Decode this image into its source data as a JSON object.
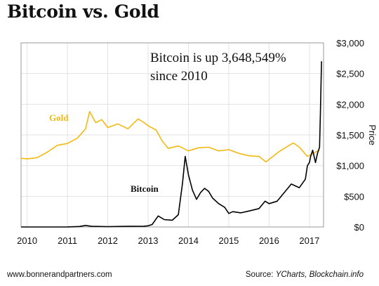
{
  "header": {
    "title": "Bitcoin vs. Gold"
  },
  "footer": {
    "website": "www.bonnerandpartners.com",
    "source_prefix": "Source: ",
    "source_names": "YCharts, Blockchain.info"
  },
  "colors": {
    "gold": "#f4b910",
    "bitcoin": "#000000",
    "grid": "#e3e3e3",
    "frame": "#9a9a9a"
  },
  "chart_data": {
    "type": "line",
    "title": "Bitcoin vs. Gold",
    "xlabel": "",
    "ylabel": "Price",
    "xlim": [
      2009.85,
      2017.35
    ],
    "ylim": [
      0,
      3000
    ],
    "x_ticks": [
      "2010",
      "2011",
      "2012",
      "2013",
      "2014",
      "2015",
      "2016",
      "2017"
    ],
    "x_tick_values": [
      2010,
      2011,
      2012,
      2013,
      2014,
      2015,
      2016,
      2017
    ],
    "y_ticks": [
      "$0",
      "$500",
      "$1,000",
      "$1,500",
      "$2,000",
      "$2,500",
      "$3,000"
    ],
    "y_tick_values": [
      0,
      500,
      1000,
      1500,
      2000,
      2500,
      3000
    ],
    "grid": true,
    "y_axis_side": "right",
    "annotation": [
      "Bitcoin is up 3,648,549%",
      "since 2010"
    ],
    "series": [
      {
        "name": "Gold",
        "color": "#f4b910",
        "x": [
          2009.85,
          2010.0,
          2010.25,
          2010.5,
          2010.75,
          2011.0,
          2011.25,
          2011.45,
          2011.55,
          2011.7,
          2011.85,
          2012.0,
          2012.25,
          2012.5,
          2012.75,
          2012.9,
          2013.0,
          2013.2,
          2013.35,
          2013.5,
          2013.75,
          2014.0,
          2014.25,
          2014.5,
          2014.75,
          2015.0,
          2015.25,
          2015.5,
          2015.75,
          2015.92,
          2016.0,
          2016.25,
          2016.5,
          2016.6,
          2016.75,
          2016.95,
          2017.1,
          2017.25
        ],
        "values": [
          1120,
          1110,
          1130,
          1220,
          1330,
          1360,
          1450,
          1600,
          1880,
          1700,
          1750,
          1620,
          1680,
          1600,
          1760,
          1700,
          1650,
          1580,
          1400,
          1280,
          1320,
          1240,
          1290,
          1300,
          1240,
          1260,
          1200,
          1160,
          1150,
          1060,
          1100,
          1230,
          1330,
          1370,
          1300,
          1150,
          1200,
          1260
        ]
      },
      {
        "name": "Bitcoin",
        "color": "#000000",
        "x": [
          2009.85,
          2010.5,
          2011.0,
          2011.3,
          2011.45,
          2011.6,
          2012.0,
          2012.5,
          2012.9,
          2013.0,
          2013.1,
          2013.25,
          2013.4,
          2013.6,
          2013.75,
          2013.85,
          2013.92,
          2014.0,
          2014.1,
          2014.2,
          2014.3,
          2014.4,
          2014.5,
          2014.6,
          2014.75,
          2014.9,
          2015.0,
          2015.1,
          2015.3,
          2015.5,
          2015.75,
          2015.9,
          2016.0,
          2016.2,
          2016.45,
          2016.55,
          2016.75,
          2016.9,
          2016.95,
          2017.0,
          2017.03,
          2017.08,
          2017.15,
          2017.2,
          2017.25,
          2017.27,
          2017.3
        ],
        "values": [
          0,
          0,
          1,
          8,
          25,
          10,
          6,
          10,
          13,
          20,
          40,
          180,
          120,
          110,
          200,
          700,
          1150,
          850,
          600,
          450,
          560,
          630,
          580,
          470,
          380,
          320,
          220,
          250,
          230,
          260,
          300,
          420,
          380,
          420,
          620,
          700,
          640,
          780,
          1000,
          1050,
          1150,
          1250,
          1050,
          1200,
          1300,
          1800,
          2700
        ]
      }
    ]
  }
}
